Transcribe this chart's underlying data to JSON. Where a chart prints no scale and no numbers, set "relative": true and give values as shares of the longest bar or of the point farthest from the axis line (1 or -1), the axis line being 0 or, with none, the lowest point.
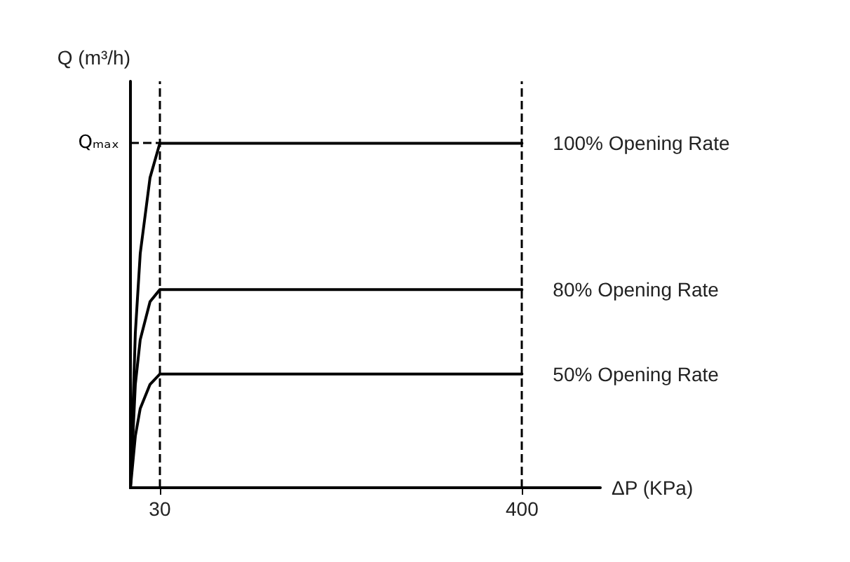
{
  "chart_data": {
    "type": "line",
    "relative": true,
    "xlabel": "ΔP (KPa)",
    "ylabel": "Q (m³/h)",
    "xlim": [
      0,
      480
    ],
    "xticks": [
      30,
      400
    ],
    "tick_labels": "x",
    "grid": false,
    "legend": false,
    "marker": "none",
    "line_style": "solid",
    "series": [
      {
        "name": "100% Opening Rate",
        "color": "#000000",
        "x": [
          0,
          5,
          10,
          20,
          30,
          400
        ],
        "values": [
          0,
          0.45,
          0.68,
          0.9,
          1,
          1
        ]
      },
      {
        "name": "80% Opening Rate",
        "color": "#000000",
        "x": [
          0,
          5,
          10,
          20,
          30,
          400
        ],
        "values": [
          0,
          0.3,
          0.43,
          0.54,
          0.575,
          0.575
        ]
      },
      {
        "name": "50% Opening Rate",
        "color": "#000000",
        "x": [
          0,
          5,
          10,
          20,
          30,
          400
        ],
        "values": [
          0,
          0.15,
          0.23,
          0.3,
          0.33,
          0.33
        ]
      }
    ],
    "ref_lines": [
      {
        "axis": "y",
        "value": 1,
        "label": "Qₘₐₓ",
        "line_style": "dashed",
        "color": "#000000"
      },
      {
        "axis": "x",
        "value": 30,
        "label": null,
        "line_style": "dashed",
        "color": "#000000"
      },
      {
        "axis": "x",
        "value": 400,
        "label": null,
        "line_style": "dashed",
        "color": "#000000"
      }
    ]
  }
}
